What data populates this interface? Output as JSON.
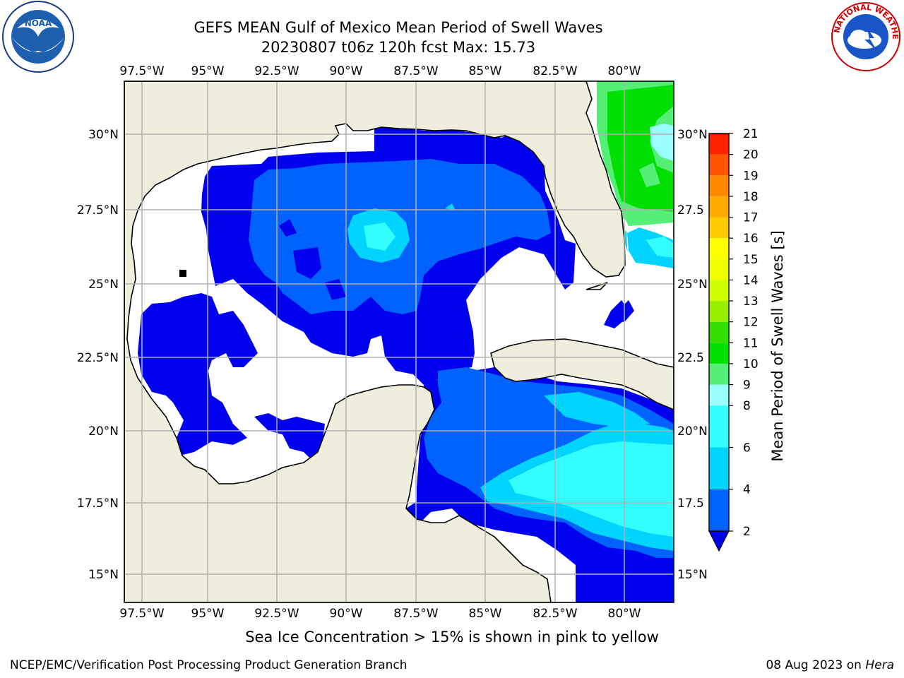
{
  "title": {
    "line1": "GEFS MEAN Gulf of Mexico Mean Period of Swell Waves",
    "line2": "20230807 t06z 120h fcst   Max: 15.73"
  },
  "logos": {
    "left": "noaa-logo",
    "right": "nws-logo",
    "nws_text": "NATIONAL WEATHER SERVICE"
  },
  "map": {
    "lon_ticks": [
      "97.5°W",
      "95°W",
      "92.5°W",
      "90°W",
      "87.5°W",
      "85°W",
      "82.5°W",
      "80°W"
    ],
    "lat_ticks_left": [
      "30°N",
      "27.5°N",
      "25°N",
      "22.5°N",
      "20°N",
      "17.5°N",
      "15°N"
    ],
    "lat_ticks_right": [
      "30°N",
      "27.5",
      "25°N",
      "22.5",
      "20°N",
      "17.5",
      "15°N"
    ],
    "colors": {
      "land": "#efeedc",
      "no_swell": "#ffffff",
      "grid": "#b0b0b0",
      "coast": "#000000"
    }
  },
  "colorbar": {
    "label": "Mean Period of Swell Waves [s]",
    "ticks": [
      "2",
      "4",
      "6",
      "8",
      "9",
      "10",
      "11",
      "12",
      "13",
      "14",
      "15",
      "16",
      "17",
      "18",
      "19",
      "20",
      "21"
    ],
    "bins": [
      {
        "from": 2,
        "to": 4,
        "color": "#0063ff"
      },
      {
        "from": 4,
        "to": 6,
        "color": "#00d4ff"
      },
      {
        "from": 6,
        "to": 8,
        "color": "#33ffff"
      },
      {
        "from": 8,
        "to": 9,
        "color": "#99ffff"
      },
      {
        "from": 9,
        "to": 10,
        "color": "#55ee77"
      },
      {
        "from": 10,
        "to": 11,
        "color": "#00e000"
      },
      {
        "from": 11,
        "to": 12,
        "color": "#33dd00"
      },
      {
        "from": 12,
        "to": 13,
        "color": "#99ee00"
      },
      {
        "from": 13,
        "to": 14,
        "color": "#ccff00"
      },
      {
        "from": 14,
        "to": 15,
        "color": "#eeff00"
      },
      {
        "from": 15,
        "to": 16,
        "color": "#ffff00"
      },
      {
        "from": 16,
        "to": 17,
        "color": "#ffcc00"
      },
      {
        "from": 17,
        "to": 18,
        "color": "#ffaa00"
      },
      {
        "from": 18,
        "to": 19,
        "color": "#ff8800"
      },
      {
        "from": 19,
        "to": 20,
        "color": "#ff5500"
      },
      {
        "from": 20,
        "to": 21,
        "color": "#ff2200"
      }
    ],
    "under_color": "#0000ee",
    "top_color": "#ff0000"
  },
  "note": "Sea Ice Concentration > 15% is shown in pink to yellow",
  "footer": {
    "left": "NCEP/EMC/Verification Post Processing Product Generation Branch",
    "date": "08 Aug 2023 on",
    "host": "Hera"
  }
}
